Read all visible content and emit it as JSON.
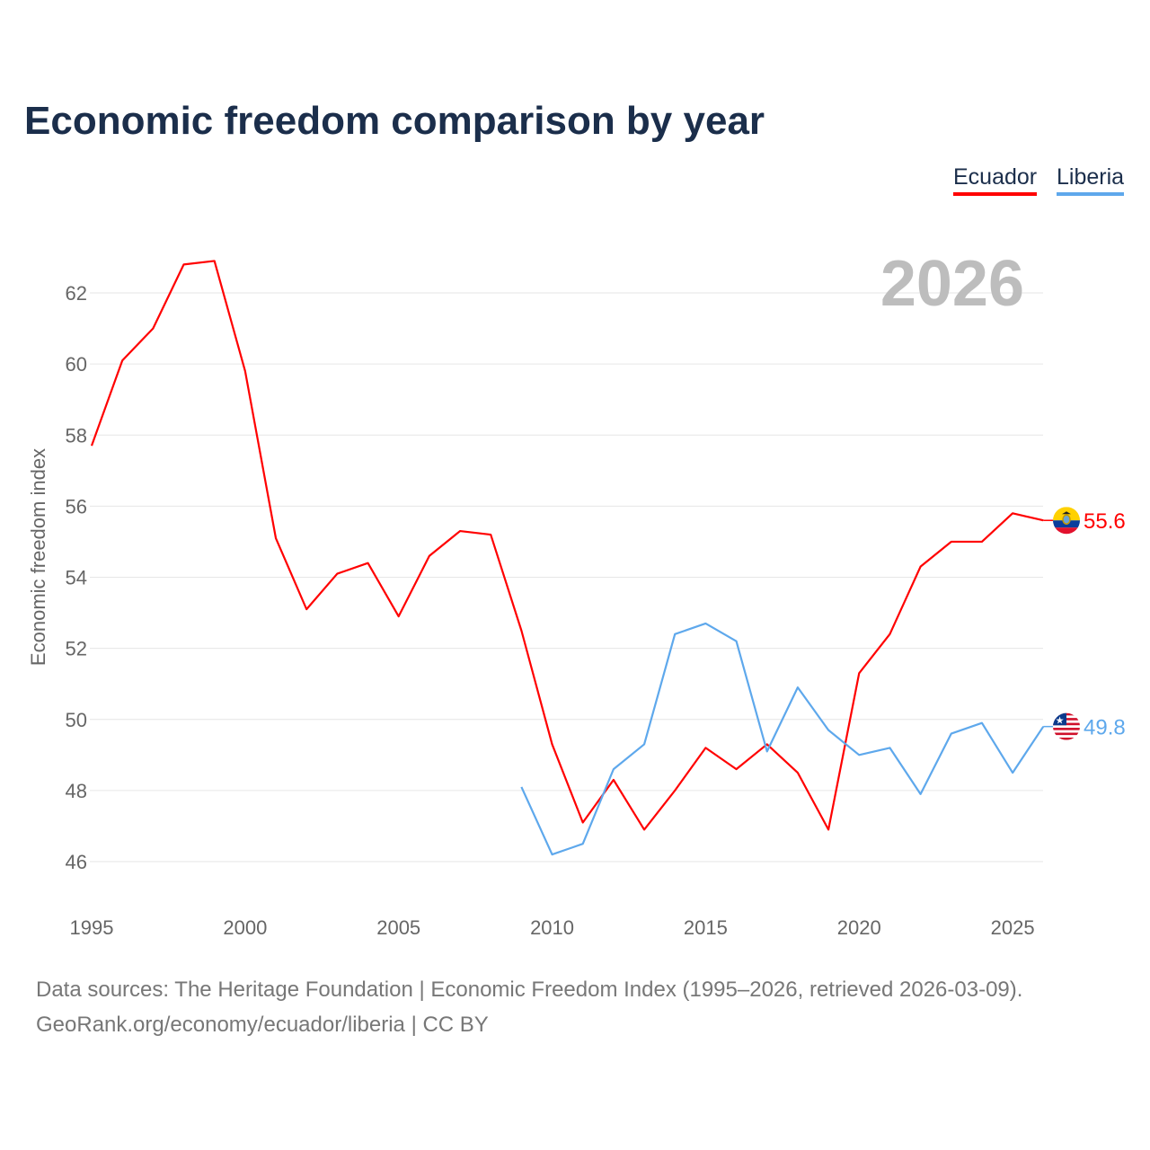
{
  "chart_data": {
    "type": "line",
    "title": "Economic freedom comparison by year",
    "ylabel": "Economic freedom index",
    "xlabel": "",
    "ylim": [
      46,
      63
    ],
    "xlim": [
      1995,
      2026
    ],
    "yticks": [
      "46",
      "48",
      "50",
      "52",
      "54",
      "56",
      "58",
      "60",
      "62"
    ],
    "xticks": [
      "1995",
      "2000",
      "2005",
      "2010",
      "2015",
      "2020",
      "2025"
    ],
    "grid": true,
    "legend_position": "top-right",
    "year_label": "2026",
    "series": [
      {
        "name": "Ecuador",
        "color": "#ff0000",
        "end_label": "55.6",
        "flag": "ecuador-flag",
        "x": [
          1995,
          1996,
          1997,
          1998,
          1999,
          2000,
          2001,
          2002,
          2003,
          2004,
          2005,
          2006,
          2007,
          2008,
          2009,
          2010,
          2011,
          2012,
          2013,
          2014,
          2015,
          2016,
          2017,
          2018,
          2019,
          2020,
          2021,
          2022,
          2023,
          2024,
          2025,
          2026
        ],
        "values": [
          57.7,
          60.1,
          61.0,
          62.8,
          62.9,
          59.8,
          55.1,
          53.1,
          54.1,
          54.4,
          52.9,
          54.6,
          55.3,
          55.2,
          52.5,
          49.3,
          47.1,
          48.3,
          46.9,
          48.0,
          49.2,
          48.6,
          49.3,
          48.5,
          46.9,
          51.3,
          52.4,
          54.3,
          55.0,
          55.0,
          55.8,
          55.6
        ]
      },
      {
        "name": "Liberia",
        "color": "#5ea8ec",
        "end_label": "49.8",
        "flag": "liberia-flag",
        "x": [
          2009,
          2010,
          2011,
          2012,
          2013,
          2014,
          2015,
          2016,
          2017,
          2018,
          2019,
          2020,
          2021,
          2022,
          2023,
          2024,
          2025,
          2026
        ],
        "values": [
          48.1,
          46.2,
          46.5,
          48.6,
          49.3,
          52.4,
          52.7,
          52.2,
          49.1,
          50.9,
          49.7,
          49.0,
          49.2,
          47.9,
          49.6,
          49.9,
          48.5,
          49.8
        ]
      }
    ]
  },
  "footer": {
    "line1": "Data sources: The Heritage Foundation | Economic Freedom Index (1995–2026, retrieved 2026-03-09).",
    "line2": "GeoRank.org/economy/ecuador/liberia | CC BY"
  }
}
